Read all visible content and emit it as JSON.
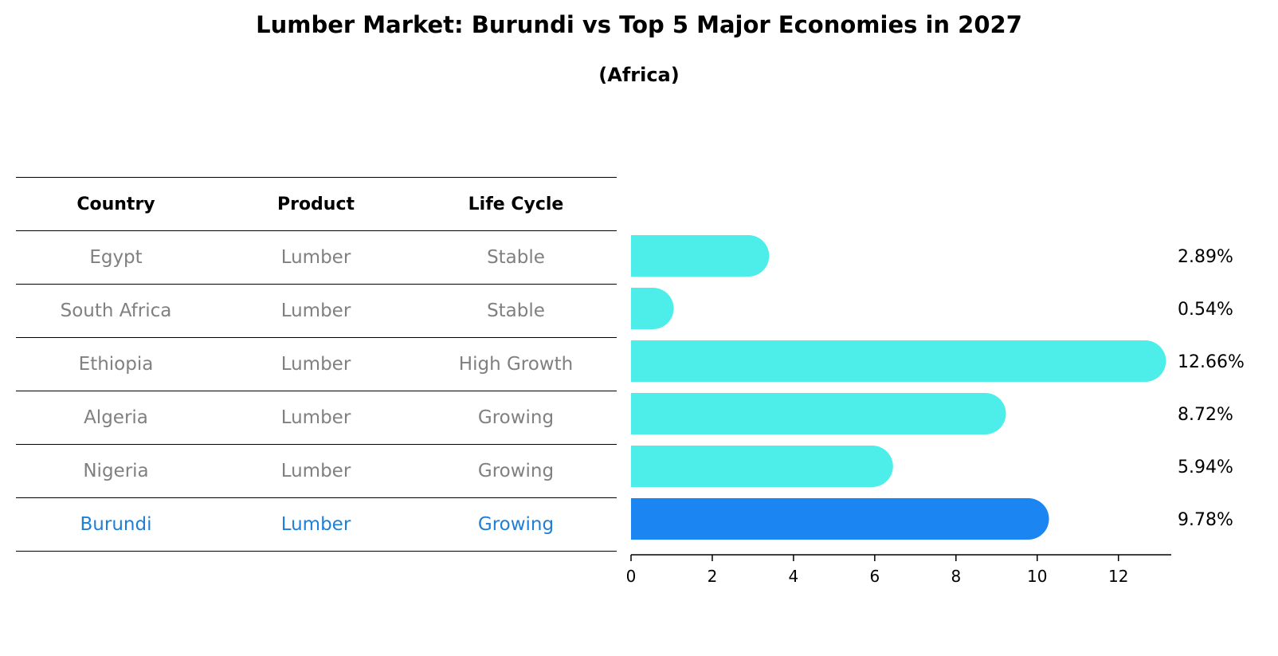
{
  "title": "Lumber Market: Burundi vs Top 5 Major Economies in 2027",
  "subtitle": "(Africa)",
  "table": {
    "headers": [
      "Country",
      "Product",
      "Life Cycle"
    ],
    "rows": [
      {
        "country": "Egypt",
        "product": "Lumber",
        "life_cycle": "Stable"
      },
      {
        "country": "South Africa",
        "product": "Lumber",
        "life_cycle": "Stable"
      },
      {
        "country": "Ethiopia",
        "product": "Lumber",
        "life_cycle": "High Growth"
      },
      {
        "country": "Algeria",
        "product": "Lumber",
        "life_cycle": "Growing"
      },
      {
        "country": "Nigeria",
        "product": "Lumber",
        "life_cycle": "Growing"
      },
      {
        "country": "Burundi",
        "product": "Lumber",
        "life_cycle": "Growing"
      }
    ]
  },
  "chart_data": {
    "type": "bar",
    "orientation": "horizontal",
    "title": "Lumber Market: Burundi vs Top 5 Major Economies in 2027",
    "subtitle": "(Africa)",
    "categories": [
      "Egypt",
      "South Africa",
      "Ethiopia",
      "Algeria",
      "Nigeria",
      "Burundi"
    ],
    "values": [
      2.89,
      0.54,
      12.66,
      8.72,
      5.94,
      9.78
    ],
    "value_labels": [
      "2.89%",
      "0.54%",
      "12.66%",
      "8.72%",
      "5.94%",
      "9.78%"
    ],
    "xlim": [
      0,
      13.3
    ],
    "xticks": [
      0,
      2,
      4,
      6,
      8,
      10,
      12
    ],
    "highlight": "Burundi",
    "colors": {
      "default": "#4dede9",
      "highlight": "#1b86f2"
    }
  }
}
